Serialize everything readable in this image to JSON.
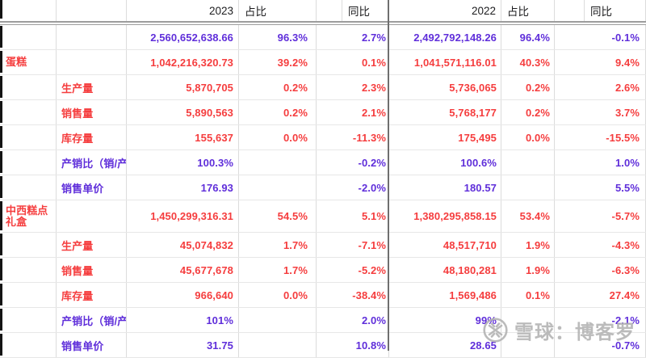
{
  "table": {
    "header": {
      "year_left": "2023",
      "share_left": "占比",
      "yoy_left": "同比",
      "year_right": "2022",
      "share_right": "占比",
      "yoy_right": "同比"
    },
    "rows": [
      {
        "category": "",
        "metric": "",
        "v2023": "2,560,652,638.66",
        "share2023": "96.3%",
        "yoy2023": "2.7%",
        "v2022": "2,492,792,148.26",
        "share2022": "96.4%",
        "yoy2022": "-0.1%",
        "tone": "purple",
        "tall": false
      },
      {
        "category": "蛋糕",
        "metric": "",
        "v2023": "1,042,216,320.73",
        "share2023": "39.2%",
        "yoy2023": "0.1%",
        "v2022": "1,041,571,116.01",
        "share2022": "40.3%",
        "yoy2022": "9.4%",
        "tone": "red",
        "tall": false
      },
      {
        "category": "",
        "metric": "生产量",
        "v2023": "5,870,705",
        "share2023": "0.2%",
        "yoy2023": "2.3%",
        "v2022": "5,736,065",
        "share2022": "0.2%",
        "yoy2022": "2.6%",
        "tone": "red",
        "tall": false
      },
      {
        "category": "",
        "metric": "销售量",
        "v2023": "5,890,563",
        "share2023": "0.2%",
        "yoy2023": "2.1%",
        "v2022": "5,768,177",
        "share2022": "0.2%",
        "yoy2022": "3.7%",
        "tone": "red",
        "tall": false
      },
      {
        "category": "",
        "metric": "库存量",
        "v2023": "155,637",
        "share2023": "0.0%",
        "yoy2023": "-11.3%",
        "v2022": "175,495",
        "share2022": "0.0%",
        "yoy2022": "-15.5%",
        "tone": "red",
        "tall": false
      },
      {
        "category": "",
        "metric": "产销比（销/产",
        "v2023": "100.3%",
        "share2023": "",
        "yoy2023": "-0.2%",
        "v2022": "100.6%",
        "share2022": "",
        "yoy2022": "1.0%",
        "tone": "purple",
        "tall": false
      },
      {
        "category": "",
        "metric": "销售单价",
        "v2023": "176.93",
        "share2023": "",
        "yoy2023": "-2.0%",
        "v2022": "180.57",
        "share2022": "",
        "yoy2022": "5.5%",
        "tone": "purple",
        "tall": false
      },
      {
        "category": "中西糕点礼盒",
        "metric": "",
        "v2023": "1,450,299,316.31",
        "share2023": "54.5%",
        "yoy2023": "5.1%",
        "v2022": "1,380,295,858.15",
        "share2022": "53.4%",
        "yoy2022": "-5.7%",
        "tone": "red",
        "tall": true
      },
      {
        "category": "",
        "metric": "生产量",
        "v2023": "45,074,832",
        "share2023": "1.7%",
        "yoy2023": "-7.1%",
        "v2022": "48,517,710",
        "share2022": "1.9%",
        "yoy2022": "-4.3%",
        "tone": "red",
        "tall": false
      },
      {
        "category": "",
        "metric": "销售量",
        "v2023": "45,677,678",
        "share2023": "1.7%",
        "yoy2023": "-5.2%",
        "v2022": "48,180,281",
        "share2022": "1.9%",
        "yoy2022": "-6.3%",
        "tone": "red",
        "tall": false
      },
      {
        "category": "",
        "metric": "库存量",
        "v2023": "966,640",
        "share2023": "0.0%",
        "yoy2023": "-38.4%",
        "v2022": "1,569,486",
        "share2022": "0.1%",
        "yoy2022": "27.4%",
        "tone": "red",
        "tall": false
      },
      {
        "category": "",
        "metric": "产销比（销/产",
        "v2023": "101%",
        "share2023": "",
        "yoy2023": "2.0%",
        "v2022": "99%",
        "share2022": "",
        "yoy2022": "-2.1%",
        "tone": "purple",
        "tall": false
      },
      {
        "category": "",
        "metric": "销售单价",
        "v2023": "31.75",
        "share2023": "",
        "yoy2023": "10.8%",
        "v2022": "28.65",
        "share2022": "",
        "yoy2022": "-0.7%",
        "tone": "purple",
        "tall": false
      }
    ]
  },
  "watermark": {
    "logo": "xueqiu-snowball-logo",
    "text": "雪球：博客罗"
  },
  "colors": {
    "value_red": "#f53d3e",
    "value_purple": "#5f2eda",
    "header_text": "#1d1d1f",
    "gridline": "#dcdcdc",
    "frozen_divider": "#6f6f6f",
    "watermark_gray": "#b2b2b2"
  }
}
